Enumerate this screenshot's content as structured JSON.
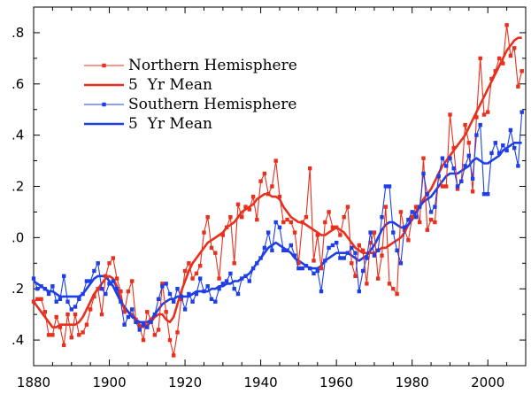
{
  "chart_data": {
    "type": "line",
    "title": "",
    "xlabel": "",
    "ylabel": "",
    "xlim": [
      1880,
      2010
    ],
    "ylim": [
      -0.5,
      0.9
    ],
    "x_ticks": [
      1880,
      1900,
      1920,
      1940,
      1960,
      1980,
      2000
    ],
    "x_tick_labels": [
      "1880",
      "1900",
      "1920",
      "1940",
      "1960",
      "1980",
      "2000"
    ],
    "y_ticks": [
      0.8,
      0.6,
      0.4,
      0.2,
      0.0,
      -0.2,
      -0.4
    ],
    "y_tick_labels": [
      ".8",
      ".6",
      ".4",
      ".2",
      ".0",
      ".2",
      ".4"
    ],
    "grid": false,
    "legend_position": "top-left",
    "x": [
      1880,
      1881,
      1882,
      1883,
      1884,
      1885,
      1886,
      1887,
      1888,
      1889,
      1890,
      1891,
      1892,
      1893,
      1894,
      1895,
      1896,
      1897,
      1898,
      1899,
      1900,
      1901,
      1902,
      1903,
      1904,
      1905,
      1906,
      1907,
      1908,
      1909,
      1910,
      1911,
      1912,
      1913,
      1914,
      1915,
      1916,
      1917,
      1918,
      1919,
      1920,
      1921,
      1922,
      1923,
      1924,
      1925,
      1926,
      1927,
      1928,
      1929,
      1930,
      1931,
      1932,
      1933,
      1934,
      1935,
      1936,
      1937,
      1938,
      1939,
      1940,
      1941,
      1942,
      1943,
      1944,
      1945,
      1946,
      1947,
      1948,
      1949,
      1950,
      1951,
      1952,
      1953,
      1954,
      1955,
      1956,
      1957,
      1958,
      1959,
      1960,
      1961,
      1962,
      1963,
      1964,
      1965,
      1966,
      1967,
      1968,
      1969,
      1970,
      1971,
      1972,
      1973,
      1974,
      1975,
      1976,
      1977,
      1978,
      1979,
      1980,
      1981,
      1982,
      1983,
      1984,
      1985,
      1986,
      1987,
      1988,
      1989,
      1990,
      1991,
      1992,
      1993,
      1994,
      1995,
      1996,
      1997,
      1998,
      1999,
      2000,
      2001,
      2002,
      2003,
      2004,
      2005,
      2006,
      2007,
      2008,
      2009
    ],
    "series": [
      {
        "name": "Northern Hemisphere",
        "color": "#e8301e",
        "style": "line-with-square-markers",
        "values": [
          -0.25,
          -0.24,
          -0.24,
          -0.29,
          -0.38,
          -0.38,
          -0.31,
          -0.35,
          -0.42,
          -0.3,
          -0.39,
          -0.3,
          -0.38,
          -0.37,
          -0.34,
          -0.28,
          -0.23,
          -0.2,
          -0.3,
          -0.15,
          -0.1,
          -0.08,
          -0.16,
          -0.21,
          -0.29,
          -0.21,
          -0.17,
          -0.32,
          -0.35,
          -0.4,
          -0.29,
          -0.32,
          -0.38,
          -0.36,
          -0.18,
          -0.29,
          -0.4,
          -0.46,
          -0.37,
          -0.24,
          -0.13,
          -0.1,
          -0.16,
          -0.14,
          -0.11,
          0.02,
          0.08,
          -0.04,
          -0.06,
          -0.16,
          0.01,
          0.04,
          0.08,
          -0.1,
          0.13,
          0.08,
          0.12,
          0.11,
          0.16,
          0.07,
          0.22,
          0.25,
          0.17,
          0.2,
          0.3,
          0.16,
          0.06,
          0.07,
          0.06,
          0.02,
          -0.1,
          0.06,
          0.08,
          0.27,
          -0.09,
          0.01,
          -0.12,
          0.06,
          0.1,
          0.04,
          0.04,
          0.01,
          0.08,
          0.12,
          -0.1,
          -0.15,
          -0.03,
          -0.05,
          -0.18,
          -0.02,
          0.02,
          -0.16,
          -0.07,
          0.12,
          -0.18,
          -0.2,
          -0.22,
          0.1,
          0.03,
          -0.01,
          0.08,
          0.12,
          0.06,
          0.31,
          0.03,
          0.07,
          0.06,
          0.24,
          0.2,
          0.2,
          0.48,
          0.35,
          0.19,
          0.22,
          0.44,
          0.37,
          0.18,
          0.47,
          0.7,
          0.48,
          0.49,
          0.62,
          0.65,
          0.7,
          0.68,
          0.83,
          0.71,
          0.74,
          0.59,
          0.65
        ]
      },
      {
        "name": "5  Yr Mean",
        "color": "#e8301e",
        "style": "thick-line",
        "values": [
          -0.25,
          -0.27,
          -0.29,
          -0.31,
          -0.33,
          -0.35,
          -0.35,
          -0.34,
          -0.34,
          -0.34,
          -0.34,
          -0.34,
          -0.33,
          -0.31,
          -0.28,
          -0.25,
          -0.22,
          -0.2,
          -0.18,
          -0.16,
          -0.15,
          -0.16,
          -0.19,
          -0.24,
          -0.28,
          -0.29,
          -0.3,
          -0.32,
          -0.34,
          -0.35,
          -0.34,
          -0.33,
          -0.31,
          -0.3,
          -0.3,
          -0.32,
          -0.33,
          -0.31,
          -0.26,
          -0.21,
          -0.17,
          -0.13,
          -0.1,
          -0.08,
          -0.06,
          -0.04,
          -0.02,
          -0.01,
          0.0,
          0.01,
          0.02,
          0.04,
          0.05,
          0.06,
          0.08,
          0.1,
          0.11,
          0.12,
          0.13,
          0.15,
          0.16,
          0.17,
          0.17,
          0.16,
          0.16,
          0.15,
          0.12,
          0.1,
          0.08,
          0.07,
          0.06,
          0.06,
          0.05,
          0.04,
          0.03,
          0.02,
          0.01,
          0.01,
          0.02,
          0.03,
          0.04,
          0.03,
          0.02,
          0.0,
          -0.02,
          -0.04,
          -0.05,
          -0.06,
          -0.06,
          -0.06,
          -0.06,
          -0.05,
          -0.04,
          -0.04,
          -0.03,
          -0.02,
          -0.01,
          0.0,
          0.02,
          0.05,
          0.08,
          0.1,
          0.12,
          0.15,
          0.17,
          0.19,
          0.22,
          0.25,
          0.28,
          0.3,
          0.32,
          0.34,
          0.36,
          0.38,
          0.4,
          0.43,
          0.46,
          0.49,
          0.52,
          0.55,
          0.58,
          0.61,
          0.64,
          0.67,
          0.7,
          0.73,
          0.75,
          0.77,
          0.78,
          0.78
        ]
      },
      {
        "name": "Southern Hemisphere",
        "color": "#1f3fe6",
        "style": "line-with-square-markers",
        "values": [
          -0.16,
          -0.2,
          -0.19,
          -0.2,
          -0.22,
          -0.19,
          -0.25,
          -0.24,
          -0.15,
          -0.25,
          -0.28,
          -0.27,
          -0.24,
          -0.22,
          -0.17,
          -0.17,
          -0.13,
          -0.1,
          -0.2,
          -0.22,
          -0.18,
          -0.17,
          -0.2,
          -0.25,
          -0.34,
          -0.31,
          -0.28,
          -0.33,
          -0.36,
          -0.34,
          -0.35,
          -0.33,
          -0.3,
          -0.24,
          -0.19,
          -0.18,
          -0.22,
          -0.25,
          -0.2,
          -0.23,
          -0.28,
          -0.22,
          -0.25,
          -0.22,
          -0.16,
          -0.21,
          -0.19,
          -0.24,
          -0.25,
          -0.2,
          -0.18,
          -0.17,
          -0.14,
          -0.2,
          -0.22,
          -0.16,
          -0.15,
          -0.17,
          -0.12,
          -0.1,
          -0.08,
          -0.04,
          0.02,
          -0.05,
          0.06,
          0.04,
          -0.05,
          -0.05,
          -0.03,
          -0.07,
          -0.12,
          -0.12,
          -0.11,
          -0.12,
          -0.14,
          -0.13,
          -0.21,
          -0.09,
          -0.04,
          -0.03,
          -0.02,
          -0.08,
          -0.08,
          -0.06,
          -0.04,
          -0.06,
          -0.21,
          -0.13,
          -0.08,
          0.02,
          -0.07,
          -0.05,
          0.08,
          0.2,
          0.2,
          0.02,
          -0.05,
          -0.1,
          0.04,
          0.07,
          0.1,
          0.08,
          0.12,
          0.25,
          0.17,
          0.1,
          0.12,
          0.24,
          0.31,
          0.28,
          0.31,
          0.27,
          0.2,
          0.22,
          0.28,
          0.32,
          0.23,
          0.4,
          0.44,
          0.17,
          0.17,
          0.33,
          0.37,
          0.33,
          0.36,
          0.34,
          0.42,
          0.35,
          0.28,
          0.49
        ]
      },
      {
        "name": "5  Yr Mean",
        "color": "#1f3fe6",
        "style": "thick-line",
        "values": [
          -0.17,
          -0.18,
          -0.19,
          -0.2,
          -0.21,
          -0.21,
          -0.22,
          -0.23,
          -0.23,
          -0.23,
          -0.23,
          -0.23,
          -0.23,
          -0.22,
          -0.2,
          -0.18,
          -0.16,
          -0.15,
          -0.15,
          -0.15,
          -0.17,
          -0.19,
          -0.22,
          -0.25,
          -0.27,
          -0.29,
          -0.31,
          -0.32,
          -0.33,
          -0.33,
          -0.33,
          -0.32,
          -0.3,
          -0.28,
          -0.26,
          -0.25,
          -0.24,
          -0.24,
          -0.23,
          -0.23,
          -0.23,
          -0.23,
          -0.22,
          -0.21,
          -0.21,
          -0.21,
          -0.21,
          -0.2,
          -0.2,
          -0.19,
          -0.19,
          -0.18,
          -0.18,
          -0.17,
          -0.17,
          -0.16,
          -0.15,
          -0.14,
          -0.12,
          -0.1,
          -0.08,
          -0.06,
          -0.04,
          -0.03,
          -0.02,
          -0.03,
          -0.04,
          -0.05,
          -0.06,
          -0.08,
          -0.09,
          -0.1,
          -0.11,
          -0.12,
          -0.12,
          -0.12,
          -0.11,
          -0.09,
          -0.08,
          -0.07,
          -0.06,
          -0.06,
          -0.06,
          -0.06,
          -0.07,
          -0.08,
          -0.09,
          -0.08,
          -0.07,
          -0.05,
          -0.03,
          0.0,
          0.03,
          0.05,
          0.06,
          0.06,
          0.05,
          0.04,
          0.04,
          0.05,
          0.07,
          0.1,
          0.12,
          0.14,
          0.15,
          0.16,
          0.18,
          0.2,
          0.22,
          0.24,
          0.25,
          0.25,
          0.25,
          0.26,
          0.27,
          0.28,
          0.3,
          0.31,
          0.3,
          0.29,
          0.29,
          0.3,
          0.31,
          0.32,
          0.34,
          0.35,
          0.36,
          0.37,
          0.37,
          0.37
        ]
      }
    ]
  }
}
